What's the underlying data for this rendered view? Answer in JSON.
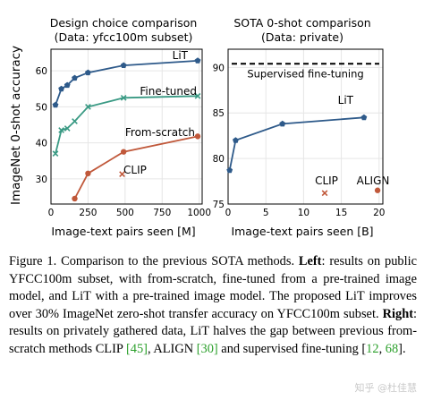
{
  "figure": {
    "ylabel_shared": "ImageNet 0-shot accuracy",
    "left": {
      "title_line1": "Design choice comparison",
      "title_line2": "(Data: yfcc100m subset)",
      "xlabel": "Image-text pairs seen [M]"
    },
    "right": {
      "title_line1": "SOTA 0-shot comparison",
      "title_line2": "(Data: private)",
      "xlabel": "Image-text pairs seen [B]"
    }
  },
  "chart_data": [
    {
      "type": "line",
      "title": "Design choice comparison (Data: yfcc100m subset)",
      "xlabel": "Image-text pairs seen [M]",
      "ylabel": "ImageNet 0-shot accuracy",
      "xlim": [
        0,
        1020
      ],
      "ylim": [
        23,
        66
      ],
      "xticks": [
        0,
        250,
        500,
        750,
        1000
      ],
      "yticks": [
        30,
        40,
        50,
        60
      ],
      "grid": true,
      "series": [
        {
          "name": "LiT",
          "color": "#2e5a8a",
          "marker": "pentagon",
          "x": [
            30,
            70,
            110,
            160,
            250,
            490,
            990
          ],
          "y": [
            50.5,
            55,
            56,
            58,
            59.5,
            61.5,
            62.8
          ]
        },
        {
          "name": "Fine-tuned",
          "color": "#3a9a84",
          "marker": "x",
          "x": [
            30,
            70,
            110,
            160,
            250,
            490,
            990
          ],
          "y": [
            37,
            43.5,
            44,
            46,
            50,
            52.5,
            53
          ]
        },
        {
          "name": "From-scratch",
          "color": "#c0583a",
          "marker": "circle",
          "x": [
            160,
            250,
            490,
            990
          ],
          "y": [
            24.5,
            31.5,
            37.5,
            41.8
          ]
        }
      ],
      "points": [
        {
          "name": "CLIP",
          "color": "#c0583a",
          "marker": "x",
          "x": 480,
          "y": 31.3
        }
      ]
    },
    {
      "type": "line",
      "title": "SOTA 0-shot comparison (Data: private)",
      "xlabel": "Image-text pairs seen [B]",
      "xlim": [
        0,
        20.5
      ],
      "ylim": [
        75,
        92
      ],
      "xticks": [
        0,
        5,
        10,
        15,
        20
      ],
      "yticks": [
        75,
        80,
        85,
        90
      ],
      "grid": true,
      "series": [
        {
          "name": "LiT",
          "color": "#2e5a8a",
          "marker": "pentagon",
          "x": [
            0.2,
            1.0,
            7.2,
            18.0
          ],
          "y": [
            78.7,
            82.0,
            83.8,
            84.5
          ]
        }
      ],
      "reference_line": {
        "label": "Supervised fine-tuning",
        "y": 90.4,
        "style": "dashed"
      },
      "points": [
        {
          "name": "CLIP",
          "color": "#c0583a",
          "marker": "x",
          "x": 12.8,
          "y": 76.2
        },
        {
          "name": "ALIGN",
          "color": "#c0583a",
          "marker": "circle",
          "x": 19.8,
          "y": 76.5
        }
      ]
    }
  ],
  "caption": {
    "figure_label": "Figure 1.",
    "sentence1": " Comparison to the previous SOTA methods. ",
    "left_label": "Left",
    "left_text": ": results on public YFCC100m subset, with from-scratch, fine-tuned from a pre-trained image model, and LiT with a pre-trained image model. The proposed LiT improves over 30% ImageNet zero-shot transfer accuracy on YFCC100m subset. ",
    "right_label": "Right",
    "right_text": ": results on privately gathered data, LiT halves the gap between previous from-scratch methods CLIP ",
    "cite_clip": "[45]",
    "mid_text": ", ALIGN ",
    "cite_align": "[30]",
    "tail_text": " and supervised fine-tuning ",
    "cite_open": "[",
    "cite_ft1": "12",
    "cite_sep": ", ",
    "cite_ft2": "68",
    "cite_close": "].",
    "watermark": "知乎 @杜佳慧"
  },
  "colors": {
    "lit": "#2e5a8a",
    "finetuned": "#3a9a84",
    "scratch": "#c0583a",
    "citation": "#2ca02c"
  }
}
